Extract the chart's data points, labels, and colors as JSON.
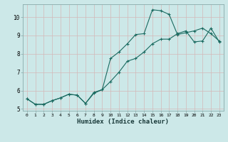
{
  "xlabel": "Humidex (Indice chaleur)",
  "ylabel": "",
  "background_color": "#cce8e8",
  "grid_color": "#b8d8d8",
  "line_color": "#1a6a60",
  "xlim": [
    -0.5,
    23.5
  ],
  "ylim": [
    4.9,
    10.7
  ],
  "yticks": [
    5,
    6,
    7,
    8,
    9,
    10
  ],
  "xticks": [
    0,
    1,
    2,
    3,
    4,
    5,
    6,
    7,
    8,
    9,
    10,
    11,
    12,
    13,
    14,
    15,
    16,
    17,
    18,
    19,
    20,
    21,
    22,
    23
  ],
  "line1_x": [
    0,
    1,
    2,
    3,
    4,
    5,
    6,
    7,
    8,
    9,
    10,
    11,
    12,
    13,
    14,
    15,
    16,
    17,
    18,
    19,
    20,
    21,
    22,
    23
  ],
  "line1_y": [
    5.55,
    5.25,
    5.25,
    5.45,
    5.6,
    5.8,
    5.75,
    5.3,
    5.9,
    6.05,
    6.5,
    7.0,
    7.6,
    7.75,
    8.1,
    8.55,
    8.8,
    8.8,
    9.1,
    9.25,
    8.65,
    8.7,
    9.4,
    8.65
  ],
  "line2_x": [
    0,
    1,
    2,
    3,
    4,
    5,
    6,
    7,
    8,
    9,
    10,
    11,
    12,
    13,
    14,
    15,
    16,
    17,
    18,
    19,
    20,
    21,
    22,
    23
  ],
  "line2_y": [
    5.55,
    5.25,
    5.25,
    5.45,
    5.6,
    5.8,
    5.75,
    5.3,
    5.85,
    6.05,
    7.75,
    8.1,
    8.55,
    9.05,
    9.1,
    10.4,
    10.35,
    10.15,
    9.05,
    9.15,
    9.25,
    9.4,
    9.1,
    8.7
  ]
}
